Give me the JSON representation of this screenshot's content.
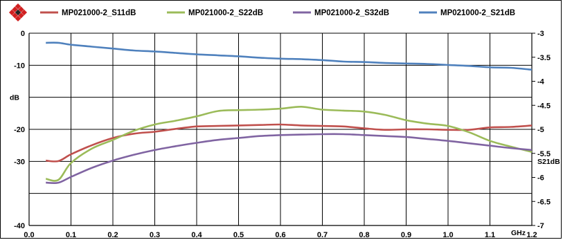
{
  "chart_data": {
    "type": "line",
    "x_unit_label": "GHz",
    "y_left_label": "dB",
    "y_right_label": "S21dB",
    "xlim": [
      0.0,
      1.2
    ],
    "ylim_left": [
      -40,
      0
    ],
    "ylim_right": [
      -7,
      -3
    ],
    "x_ticks": [
      "0.0",
      "0.1",
      "0.2",
      "0.3",
      "0.4",
      "0.5",
      "0.6",
      "0.7",
      "0.8",
      "0.9",
      "1.0",
      "1.1",
      "1.2"
    ],
    "y_left_ticks": [
      "0",
      "-10",
      "dB",
      "-20",
      "-30",
      "",
      "-40"
    ],
    "y_right_ticks": [
      "-3",
      "-3.5",
      "-4",
      "-4.5",
      "-5",
      "-5.5",
      "-6",
      "-6.5",
      "-7"
    ],
    "grid": true,
    "legend_position": "top",
    "series": [
      {
        "name": "MP021000-2_S11dB",
        "axis": "left",
        "color": "#c0504d",
        "x": [
          0.04,
          0.07,
          0.1,
          0.15,
          0.2,
          0.25,
          0.3,
          0.35,
          0.4,
          0.45,
          0.5,
          0.55,
          0.6,
          0.65,
          0.7,
          0.75,
          0.8,
          0.85,
          0.9,
          0.95,
          1.0,
          1.05,
          1.1,
          1.15,
          1.2
        ],
        "y": [
          -26.5,
          -26.6,
          -25.2,
          -23.3,
          -21.8,
          -20.9,
          -20.5,
          -19.9,
          -19.4,
          -19.3,
          -19.2,
          -19.1,
          -19.0,
          -19.2,
          -19.3,
          -19.4,
          -19.8,
          -20.1,
          -20.0,
          -20.0,
          -20.1,
          -20.1,
          -19.6,
          -19.5,
          -19.2
        ]
      },
      {
        "name": "MP021000-2_S22dB",
        "axis": "left",
        "color": "#9bbb59",
        "x": [
          0.04,
          0.07,
          0.1,
          0.15,
          0.2,
          0.25,
          0.3,
          0.35,
          0.4,
          0.45,
          0.5,
          0.55,
          0.6,
          0.65,
          0.7,
          0.75,
          0.8,
          0.85,
          0.9,
          0.95,
          1.0,
          1.05,
          1.1,
          1.15,
          1.2
        ],
        "y": [
          -30.3,
          -30.5,
          -27.0,
          -24.0,
          -22.2,
          -20.3,
          -19.0,
          -18.2,
          -17.3,
          -16.2,
          -16.0,
          -15.9,
          -15.7,
          -15.3,
          -15.9,
          -16.1,
          -16.3,
          -17.0,
          -18.1,
          -18.8,
          -19.3,
          -20.6,
          -22.4,
          -23.6,
          -24.7
        ]
      },
      {
        "name": "MP021000-2_S32dB",
        "axis": "left",
        "color": "#8064a2",
        "x": [
          0.04,
          0.07,
          0.1,
          0.15,
          0.2,
          0.25,
          0.3,
          0.35,
          0.4,
          0.45,
          0.5,
          0.55,
          0.6,
          0.65,
          0.7,
          0.75,
          0.8,
          0.85,
          0.9,
          0.95,
          1.0,
          1.05,
          1.1,
          1.15,
          1.2
        ],
        "y": [
          -31.1,
          -31.1,
          -29.9,
          -28.0,
          -26.5,
          -25.3,
          -24.3,
          -23.5,
          -22.8,
          -22.2,
          -21.8,
          -21.4,
          -21.2,
          -21.1,
          -21.0,
          -21.0,
          -21.2,
          -21.4,
          -21.6,
          -22.0,
          -22.4,
          -22.9,
          -23.4,
          -23.9,
          -24.3
        ]
      },
      {
        "name": "MP021000-2_S21dB",
        "axis": "right",
        "color": "#4f81bd",
        "x": [
          0.04,
          0.07,
          0.1,
          0.15,
          0.2,
          0.25,
          0.3,
          0.35,
          0.4,
          0.45,
          0.5,
          0.55,
          0.6,
          0.65,
          0.7,
          0.75,
          0.8,
          0.85,
          0.9,
          0.95,
          1.0,
          1.05,
          1.1,
          1.15,
          1.2
        ],
        "y": [
          -3.2,
          -3.2,
          -3.24,
          -3.28,
          -3.32,
          -3.36,
          -3.38,
          -3.41,
          -3.44,
          -3.46,
          -3.48,
          -3.51,
          -3.53,
          -3.54,
          -3.56,
          -3.59,
          -3.6,
          -3.62,
          -3.63,
          -3.64,
          -3.66,
          -3.68,
          -3.71,
          -3.72,
          -3.76
        ]
      }
    ]
  }
}
